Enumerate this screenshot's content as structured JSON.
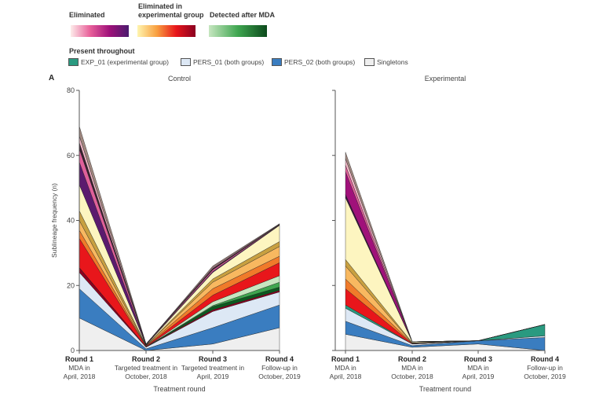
{
  "legend": {
    "gradients": [
      {
        "label": "Eliminated",
        "colors": [
          "#fdecea",
          "#e8609a",
          "#a0117a",
          "#4a1a6e"
        ]
      },
      {
        "label": "Eliminated in experimental group",
        "colors": [
          "#fff5b0",
          "#f8a040",
          "#e8161b",
          "#8b0020"
        ]
      },
      {
        "label": "Detected after MDA",
        "colors": [
          "#c6e6c0",
          "#3fa650",
          "#0c4a1c"
        ]
      }
    ],
    "present_title": "Present throughout",
    "items": [
      {
        "label": "EXP_01 (experimental group)",
        "color": "#2a9a80"
      },
      {
        "label": "PERS_01 (both groups)",
        "color": "#dde8f5"
      },
      {
        "label": "PERS_02 (both groups)",
        "color": "#3a7dc0"
      },
      {
        "label": "Singletons",
        "color": "#efefef"
      }
    ]
  },
  "panel_label": "A",
  "chart_data": [
    {
      "type": "area",
      "title": "Control",
      "xlabel": "Treatment round",
      "ylabel": "Sublineage frequency (n)",
      "ylim": [
        0,
        80
      ],
      "yticks": [
        "0",
        "20",
        "40",
        "60",
        "80"
      ],
      "categories": [
        {
          "round": "Round 1",
          "desc": "MDA in April, 2018"
        },
        {
          "round": "Round 2",
          "desc": "Targeted treatment in October, 2018"
        },
        {
          "round": "Round 3",
          "desc": "Targeted treatment in April, 2019"
        },
        {
          "round": "Round 4",
          "desc": "Follow-up in October, 2019"
        }
      ],
      "stacked": true,
      "series": [
        {
          "name": "Singletons",
          "color": "#efefef",
          "values": [
            10,
            0,
            2,
            7
          ]
        },
        {
          "name": "PERS_02 (both groups)",
          "color": "#3a7dc0",
          "values": [
            9,
            0.5,
            5,
            7
          ]
        },
        {
          "name": "PERS_01 (both groups)",
          "color": "#dde8f5",
          "values": [
            5,
            0.5,
            5,
            4
          ]
        },
        {
          "color": "#8b0020",
          "values": [
            1.5,
            0.1,
            0.5,
            0.5
          ]
        },
        {
          "color": "#0c5a20",
          "values": [
            0,
            0,
            1,
            1
          ]
        },
        {
          "color": "#3fa650",
          "values": [
            0,
            0,
            0.3,
            1.5
          ]
        },
        {
          "color": "#c6e6c0",
          "values": [
            0,
            0,
            1.2,
            2
          ]
        },
        {
          "color": "#e8161b",
          "values": [
            9,
            0.2,
            2,
            4
          ]
        },
        {
          "color": "#f07a2a",
          "values": [
            2.5,
            0.1,
            2,
            2
          ]
        },
        {
          "color": "#f8b860",
          "values": [
            3,
            0.1,
            2,
            3
          ]
        },
        {
          "color": "#c8a040",
          "values": [
            3,
            0.1,
            1,
            1.5
          ]
        },
        {
          "color": "#fdf5c0",
          "values": [
            8,
            0.1,
            2,
            5
          ]
        },
        {
          "color": "#5b1a6e",
          "values": [
            7,
            0.1,
            0.3,
            0.1
          ]
        },
        {
          "color": "#e0609a",
          "values": [
            4,
            0.1,
            0.5,
            0.1
          ]
        },
        {
          "color": "#3a2030",
          "values": [
            2,
            0.1,
            0.5,
            0.1
          ]
        },
        {
          "color": "#f4b8c8",
          "values": [
            2,
            0,
            0.3,
            0.1
          ]
        },
        {
          "color": "#a08880",
          "values": [
            3,
            0,
            0.4,
            0.1
          ]
        }
      ]
    },
    {
      "type": "area",
      "title": "Experimental",
      "xlabel": "Treatment round",
      "ylim": [
        0,
        80
      ],
      "categories": [
        {
          "round": "Round 1",
          "desc": "MDA in April, 2018"
        },
        {
          "round": "Round 2",
          "desc": "MDA in October, 2018"
        },
        {
          "round": "Round 3",
          "desc": "MDA in April, 2019"
        },
        {
          "round": "Round 4",
          "desc": "Follow-up in October, 2019"
        }
      ],
      "stacked": true,
      "series": [
        {
          "name": "Singletons",
          "color": "#efefef",
          "values": [
            5,
            1,
            2,
            0
          ]
        },
        {
          "name": "PERS_02 (both groups)",
          "color": "#3a7dc0",
          "values": [
            4,
            0.5,
            1,
            4
          ]
        },
        {
          "name": "PERS_01 (both groups)",
          "color": "#dde8f5",
          "values": [
            4,
            0.5,
            0,
            0.5
          ]
        },
        {
          "name": "EXP_01 (experimental group)",
          "color": "#2a9a80",
          "values": [
            1,
            0,
            0,
            3.5
          ]
        },
        {
          "color": "#e8161b",
          "values": [
            5,
            0.1,
            0,
            0
          ]
        },
        {
          "color": "#f07a2a",
          "values": [
            3,
            0.1,
            0,
            0
          ]
        },
        {
          "color": "#f8b860",
          "values": [
            4,
            0.1,
            0,
            0
          ]
        },
        {
          "color": "#c8a040",
          "values": [
            2,
            0.1,
            0,
            0
          ]
        },
        {
          "color": "#fdf5c0",
          "values": [
            19,
            0.3,
            0,
            0
          ]
        },
        {
          "color": "#3a1040",
          "values": [
            1,
            0,
            0,
            0
          ]
        },
        {
          "color": "#a0117a",
          "values": [
            7,
            0,
            0,
            0
          ]
        },
        {
          "color": "#e0609a",
          "values": [
            2,
            0,
            0,
            0
          ]
        },
        {
          "color": "#f4b8c8",
          "values": [
            2,
            0,
            0,
            0
          ]
        },
        {
          "color": "#a08880",
          "values": [
            2,
            0,
            0,
            0
          ]
        }
      ]
    }
  ]
}
